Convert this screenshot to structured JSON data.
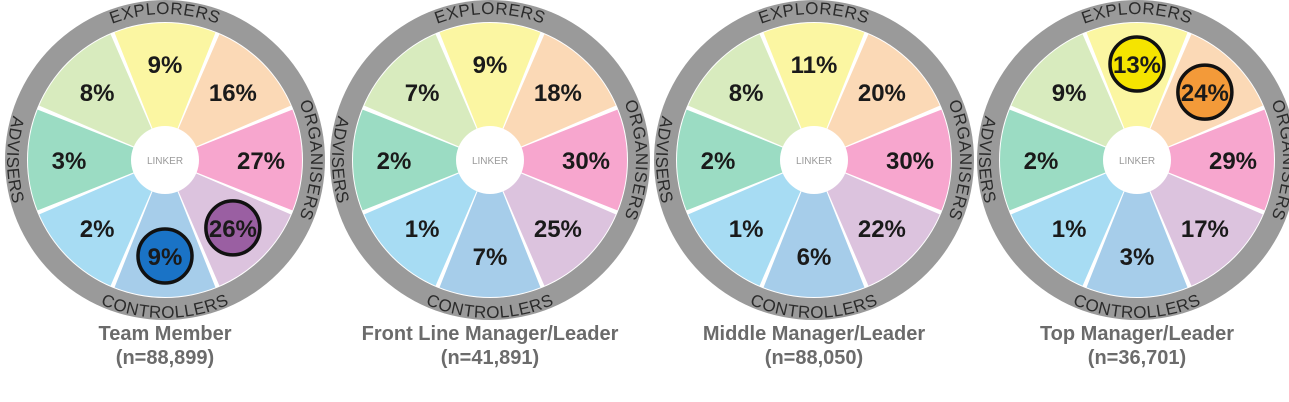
{
  "colors": {
    "ring": "#9a9a9a",
    "segments": [
      "#fbf6a2",
      "#fbd9b6",
      "#f7a6ce",
      "#dcc3de",
      "#a6cdea",
      "#a7dcf3",
      "#9bdcc3",
      "#d8ebbe"
    ],
    "highlight_yellow": "#f5e400",
    "highlight_orange": "#f39a39",
    "highlight_purple": "#9a5fa2",
    "highlight_blue": "#1a73c6"
  },
  "labels": {
    "ring": [
      "EXPLORERS",
      "ORGANISERS",
      "CONTROLLERS",
      "ADVISERS"
    ],
    "hub": "LINKER"
  },
  "chart_data": [
    {
      "type": "pie",
      "name_line1": "Team Member",
      "name_line2": "(n=88,899)",
      "categories": [
        "Explorers-top",
        "Organisers-upper",
        "Organisers-lower",
        "Controllers-right",
        "Controllers-bottom",
        "Advisers-lower",
        "Advisers-upper",
        "Explorers-left"
      ],
      "labels": [
        "9%",
        "16%",
        "27%",
        "26%",
        "9%",
        "2%",
        "3%",
        "8%"
      ],
      "values": [
        9,
        16,
        27,
        26,
        9,
        2,
        3,
        8
      ],
      "highlight": [
        {
          "index": 3,
          "color": "highlight_purple"
        },
        {
          "index": 4,
          "color": "highlight_blue"
        }
      ]
    },
    {
      "type": "pie",
      "name_line1": "Front Line Manager/Leader",
      "name_line2": "(n=41,891)",
      "categories": [
        "Explorers-top",
        "Organisers-upper",
        "Organisers-lower",
        "Controllers-right",
        "Controllers-bottom",
        "Advisers-lower",
        "Advisers-upper",
        "Explorers-left"
      ],
      "labels": [
        "9%",
        "18%",
        "30%",
        "25%",
        "7%",
        "1%",
        "2%",
        "7%"
      ],
      "values": [
        9,
        18,
        30,
        25,
        7,
        1,
        2,
        7
      ],
      "highlight": []
    },
    {
      "type": "pie",
      "name_line1": "Middle Manager/Leader",
      "name_line2": "(n=88,050)",
      "categories": [
        "Explorers-top",
        "Organisers-upper",
        "Organisers-lower",
        "Controllers-right",
        "Controllers-bottom",
        "Advisers-lower",
        "Advisers-upper",
        "Explorers-left"
      ],
      "labels": [
        "11%",
        "20%",
        "30%",
        "22%",
        "6%",
        "1%",
        "2%",
        "8%"
      ],
      "values": [
        11,
        20,
        30,
        22,
        6,
        1,
        2,
        8
      ],
      "highlight": []
    },
    {
      "type": "pie",
      "name_line1": "Top Manager/Leader",
      "name_line2": "(n=36,701)",
      "categories": [
        "Explorers-top",
        "Organisers-upper",
        "Organisers-lower",
        "Controllers-right",
        "Controllers-bottom",
        "Advisers-lower",
        "Advisers-upper",
        "Explorers-left"
      ],
      "labels": [
        "13%",
        "24%",
        "29%",
        "17%",
        "3%",
        "1%",
        "2%",
        "9%"
      ],
      "values": [
        13,
        24,
        29,
        17,
        3,
        1,
        2,
        9
      ],
      "highlight": [
        {
          "index": 0,
          "color": "highlight_yellow"
        },
        {
          "index": 1,
          "color": "highlight_orange"
        }
      ]
    }
  ]
}
